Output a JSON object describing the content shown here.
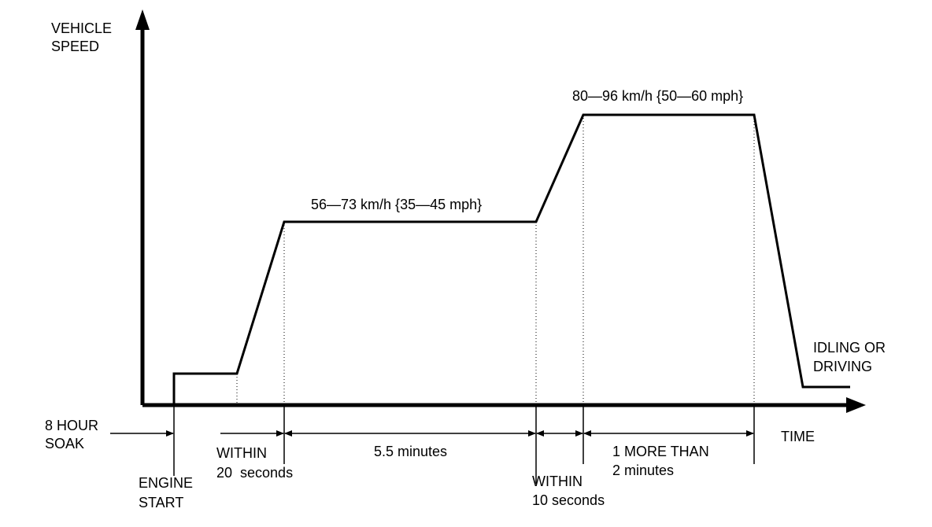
{
  "axes": {
    "y_label": [
      "VEHICLE",
      "SPEED"
    ],
    "x_label": "TIME"
  },
  "speed_labels": [
    "56—73 km/h {35—45 mph}",
    "80—96 km/h {50—60 mph}"
  ],
  "end_label": [
    "IDLING OR",
    "DRIVING"
  ],
  "events": {
    "soak": [
      "8 HOUR",
      "SOAK"
    ],
    "engine_start": [
      "ENGINE",
      "START"
    ]
  },
  "intervals": [
    [
      "WITHIN",
      "20  seconds"
    ],
    [
      "5.5 minutes"
    ],
    [
      "WITHIN",
      "10 seconds"
    ],
    [
      "1 MORE THAN",
      "2 minutes"
    ]
  ]
}
